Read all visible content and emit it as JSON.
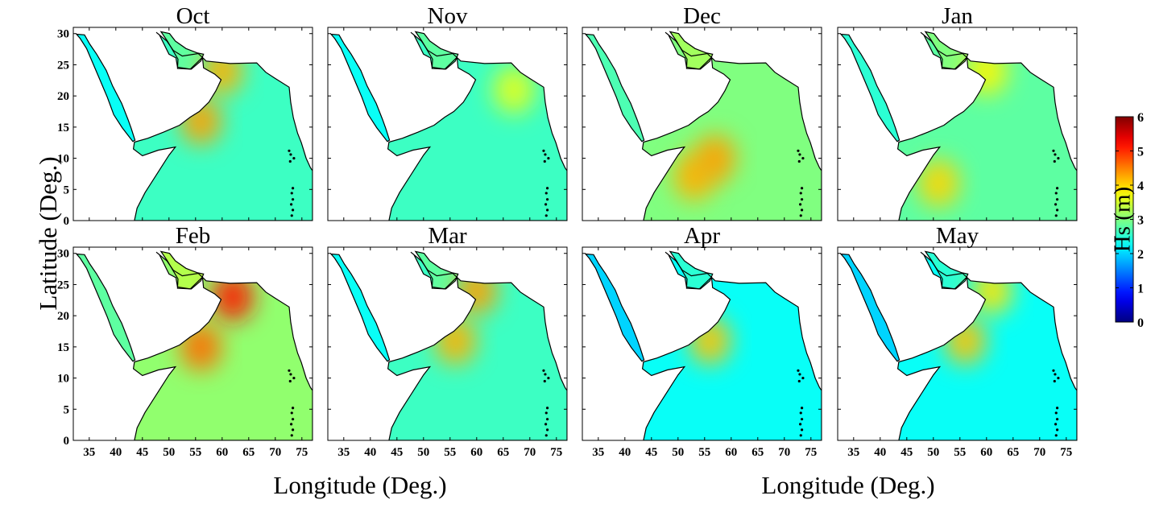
{
  "figure": {
    "y_axis_label": "Latitude (Deg.)",
    "x_axis_labels": [
      "Longitude (Deg.)",
      "Longitude (Deg.)"
    ],
    "colorbar": {
      "label": "Hs (m)",
      "ticks": [
        "0",
        "1",
        "2",
        "3",
        "4",
        "5",
        "6"
      ],
      "range": [
        0,
        6
      ],
      "colormap": "jet"
    },
    "lat_ticks": [
      "0",
      "5",
      "10",
      "15",
      "20",
      "25",
      "30"
    ],
    "lon_ticks": [
      "35",
      "40",
      "45",
      "50",
      "55",
      "60",
      "65",
      "70",
      "75"
    ],
    "lon_range": [
      32,
      77
    ],
    "lat_range": [
      0,
      31
    ]
  },
  "panels": [
    {
      "month": "Oct",
      "mean_hs": 2.6,
      "spots": [
        {
          "lon": 56,
          "lat": 16,
          "hs": 4.3
        },
        {
          "lon": 60,
          "lat": 24,
          "hs": 4.2
        }
      ]
    },
    {
      "month": "Nov",
      "mean_hs": 2.6,
      "spots": [
        {
          "lon": 67,
          "lat": 21,
          "hs": 3.6
        }
      ]
    },
    {
      "month": "Dec",
      "mean_hs": 3.0,
      "spots": [
        {
          "lon": 53,
          "lat": 7,
          "hs": 4.2
        },
        {
          "lon": 57,
          "lat": 10,
          "hs": 4.3
        }
      ]
    },
    {
      "month": "Jan",
      "mean_hs": 2.8,
      "spots": [
        {
          "lon": 51,
          "lat": 6,
          "hs": 4.0
        },
        {
          "lon": 60,
          "lat": 24,
          "hs": 3.8
        }
      ]
    },
    {
      "month": "Feb",
      "mean_hs": 3.1,
      "spots": [
        {
          "lon": 62,
          "lat": 23,
          "hs": 5.1
        },
        {
          "lon": 56,
          "lat": 15,
          "hs": 4.6
        }
      ]
    },
    {
      "month": "Mar",
      "mean_hs": 2.6,
      "spots": [
        {
          "lon": 60,
          "lat": 24,
          "hs": 4.3
        },
        {
          "lon": 56,
          "lat": 16,
          "hs": 4.2
        }
      ]
    },
    {
      "month": "Apr",
      "mean_hs": 2.3,
      "spots": [
        {
          "lon": 56,
          "lat": 16,
          "hs": 4.1
        }
      ]
    },
    {
      "month": "May",
      "mean_hs": 2.3,
      "spots": [
        {
          "lon": 56,
          "lat": 16,
          "hs": 4.1
        },
        {
          "lon": 61,
          "lat": 24,
          "hs": 3.9
        }
      ]
    }
  ]
}
